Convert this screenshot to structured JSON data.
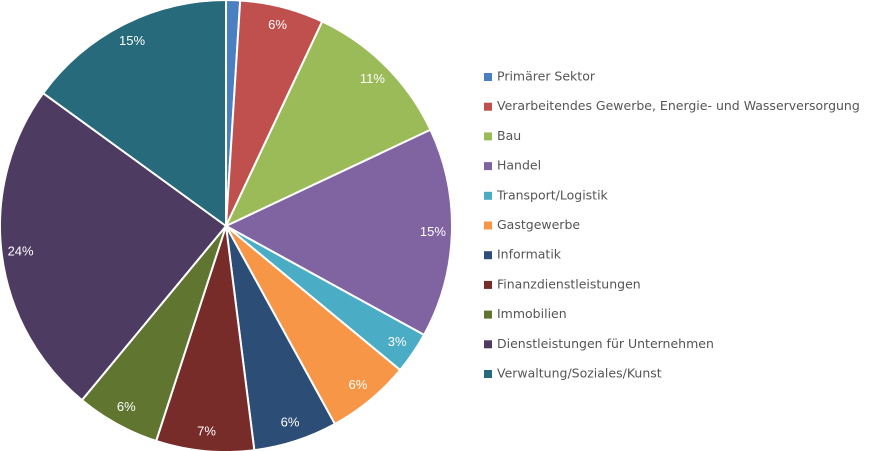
{
  "chart_data": {
    "type": "pie",
    "title": "",
    "legend_position": "right",
    "slices": [
      {
        "name": "Primärer Sektor",
        "value": 1,
        "label": "",
        "color": "#4a7fc1"
      },
      {
        "name": "Verarbeitendes Gewerbe, Energie- und Wasserversorgung",
        "value": 6,
        "label": "6%",
        "color": "#c0504d"
      },
      {
        "name": "Bau",
        "value": 11,
        "label": "11%",
        "color": "#9bbb59"
      },
      {
        "name": "Handel",
        "value": 15,
        "label": "15%",
        "color": "#8064a2"
      },
      {
        "name": "Transport/Logistik",
        "value": 3,
        "label": "3%",
        "color": "#4bacc6"
      },
      {
        "name": "Gastgewerbe",
        "value": 6,
        "label": "6%",
        "color": "#f79646"
      },
      {
        "name": "Informatik",
        "value": 6,
        "label": "6%",
        "color": "#2c4d75"
      },
      {
        "name": "Finanzdienstleistungen",
        "value": 7,
        "label": "7%",
        "color": "#772c2a"
      },
      {
        "name": "Immobilien",
        "value": 6,
        "label": "6%",
        "color": "#5f7530"
      },
      {
        "name": "Dienstleistungen für Unternehmen",
        "value": 24,
        "label": "24%",
        "color": "#4d3b62"
      },
      {
        "name": "Verwaltung/Soziales/Kunst",
        "value": 15,
        "label": "15%",
        "color": "#276a7c"
      }
    ]
  }
}
